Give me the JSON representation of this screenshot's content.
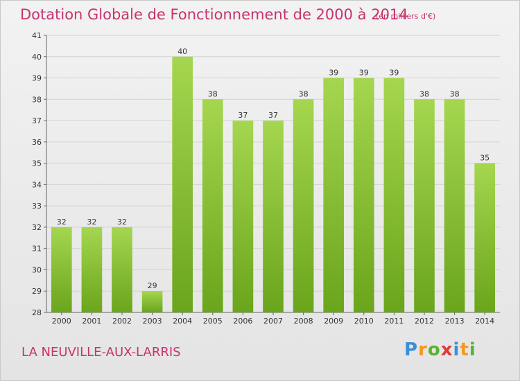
{
  "chart_data": {
    "type": "bar",
    "title": "Dotation Globale de Fonctionnement de 2000 à 2014",
    "subtitle": "(en milliers d'€)",
    "categories": [
      "2000",
      "2001",
      "2002",
      "2003",
      "2004",
      "2005",
      "2006",
      "2007",
      "2008",
      "2009",
      "2010",
      "2011",
      "2012",
      "2013",
      "2014"
    ],
    "values": [
      32,
      32,
      32,
      29,
      40,
      38,
      37,
      37,
      38,
      39,
      39,
      39,
      38,
      38,
      35
    ],
    "data_labels": [
      "32",
      "32",
      "32",
      "29",
      "40",
      "38",
      "37",
      "37",
      "38",
      "39",
      "39",
      "39",
      "38",
      "38",
      "35"
    ],
    "xlabel": "",
    "ylabel": "",
    "ylim": [
      28,
      41
    ],
    "yticks": [
      "28",
      "29",
      "30",
      "31",
      "32",
      "33",
      "34",
      "35",
      "36",
      "37",
      "38",
      "39",
      "40",
      "41"
    ],
    "grid": true,
    "bar_color_top": "#a5d64f",
    "bar_color_bottom": "#6aa51c"
  },
  "footer": {
    "city": "LA NEUVILLE-AUX-LARRIS",
    "logo": [
      "P",
      "r",
      "o",
      "x",
      "i",
      "t",
      "i"
    ]
  },
  "colors": {
    "accent": "#c8326e"
  }
}
